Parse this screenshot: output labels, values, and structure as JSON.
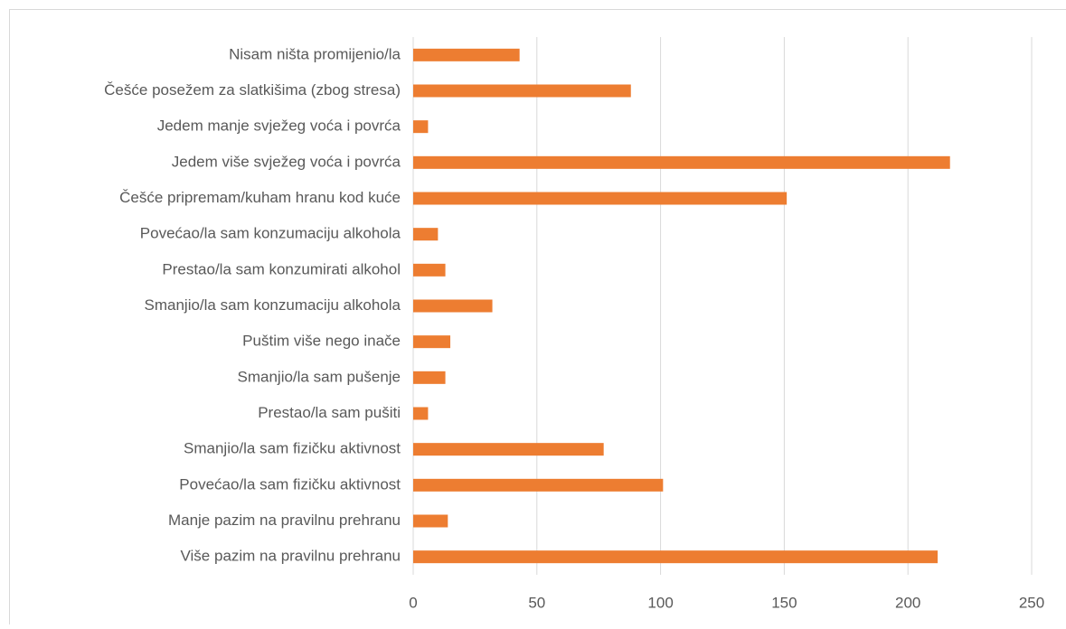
{
  "chart_data": {
    "type": "barh",
    "categories": [
      "Nisam ništa promijenio/la",
      "Češće posežem za slatkišima (zbog stresa)",
      "Jedem manje svježeg voća i povrća",
      "Jedem više svježeg voća i povrća",
      "Češće pripremam/kuham hranu kod kuće",
      "Povećao/la sam konzumaciju alkohola",
      "Prestao/la sam konzumirati alkohol",
      "Smanjio/la sam konzumaciju alkohola",
      "Puštim više nego inače",
      "Smanjio/la sam pušenje",
      "Prestao/la sam pušiti",
      "Smanjio/la sam fizičku aktivnost",
      "Povećao/la sam fizičku aktivnost",
      "Manje pazim na pravilnu prehranu",
      "Više pazim na pravilnu prehranu"
    ],
    "values": [
      43,
      88,
      6,
      217,
      151,
      10,
      13,
      32,
      15,
      13,
      6,
      77,
      101,
      14,
      212
    ],
    "color": "#ed7d31",
    "xlim": [
      0,
      250
    ],
    "xticks": [
      0,
      50,
      100,
      150,
      200,
      250
    ],
    "grid": true
  }
}
